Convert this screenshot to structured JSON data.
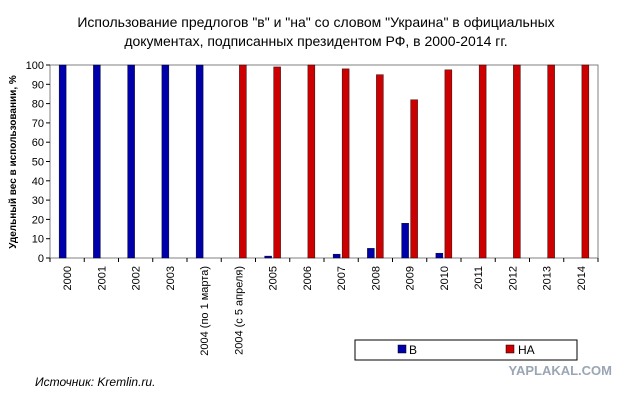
{
  "chart_data": {
    "type": "bar",
    "title_lines": [
      "Использование предлогов \"в\" и \"на\" со словом \"Украина\" в официальных",
      "документах, подписанных президентом РФ, в 2000-2014 гг."
    ],
    "ylabel": "Удельный вес в использовании, %",
    "ylim": [
      0,
      100
    ],
    "yticks": [
      0,
      10,
      20,
      30,
      40,
      50,
      60,
      70,
      80,
      90,
      100
    ],
    "grid": false,
    "legend_position": "bottom-right",
    "categories": [
      "2000",
      "2001",
      "2002",
      "2003",
      "2004 (по 1 марта)",
      "2004 (с 5 апреля)",
      "2005",
      "2006",
      "2007",
      "2008",
      "2009",
      "2010",
      "2011",
      "2012",
      "2013",
      "2014"
    ],
    "series": [
      {
        "name": "В",
        "color": "#0000AA",
        "values": [
          100,
          100,
          100,
          100,
          100,
          0,
          1,
          0,
          2,
          5,
          18,
          2.5,
          0,
          0,
          0,
          0
        ]
      },
      {
        "name": "НА",
        "color": "#CC0000",
        "values": [
          0,
          0,
          0,
          0,
          0,
          100,
          99,
          100,
          98,
          95,
          82,
          97.5,
          100,
          100,
          100,
          100
        ]
      }
    ]
  },
  "source_note": "Источник: Kremlin.ru.",
  "watermark": "YAPLAKAL.COM"
}
